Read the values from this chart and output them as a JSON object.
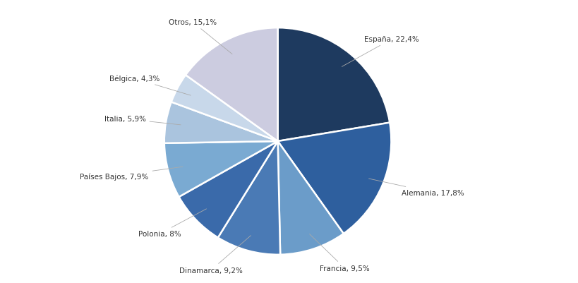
{
  "labels": [
    "España",
    "Alemania",
    "Francia",
    "Dinamarca",
    "Polonia",
    "Países Bajos",
    "Italia",
    "Bélgica",
    "Otros"
  ],
  "values": [
    22.4,
    17.8,
    9.5,
    9.2,
    8.0,
    7.9,
    5.9,
    4.3,
    15.1
  ],
  "colors": [
    "#1e3a5f",
    "#2e5f9e",
    "#6b9cc9",
    "#4a7ab5",
    "#3a6aaa",
    "#7aaad2",
    "#aac4de",
    "#c8d8ea",
    "#cccce0"
  ],
  "label_texts": [
    "España, 22,4%",
    "Alemania, 17,8%",
    "Francia, 9,5%",
    "Dinamarca, 9,2%",
    "Polonia, 8%",
    "Países Bajos, 7,9%",
    "Italia, 5,9%",
    "Bélgica, 4,3%",
    "Otros, 15,1%"
  ],
  "startangle": 90,
  "bg_color": "#ffffff",
  "label_color": "#333333",
  "edge_color": "#ffffff",
  "font_size": 7.5
}
